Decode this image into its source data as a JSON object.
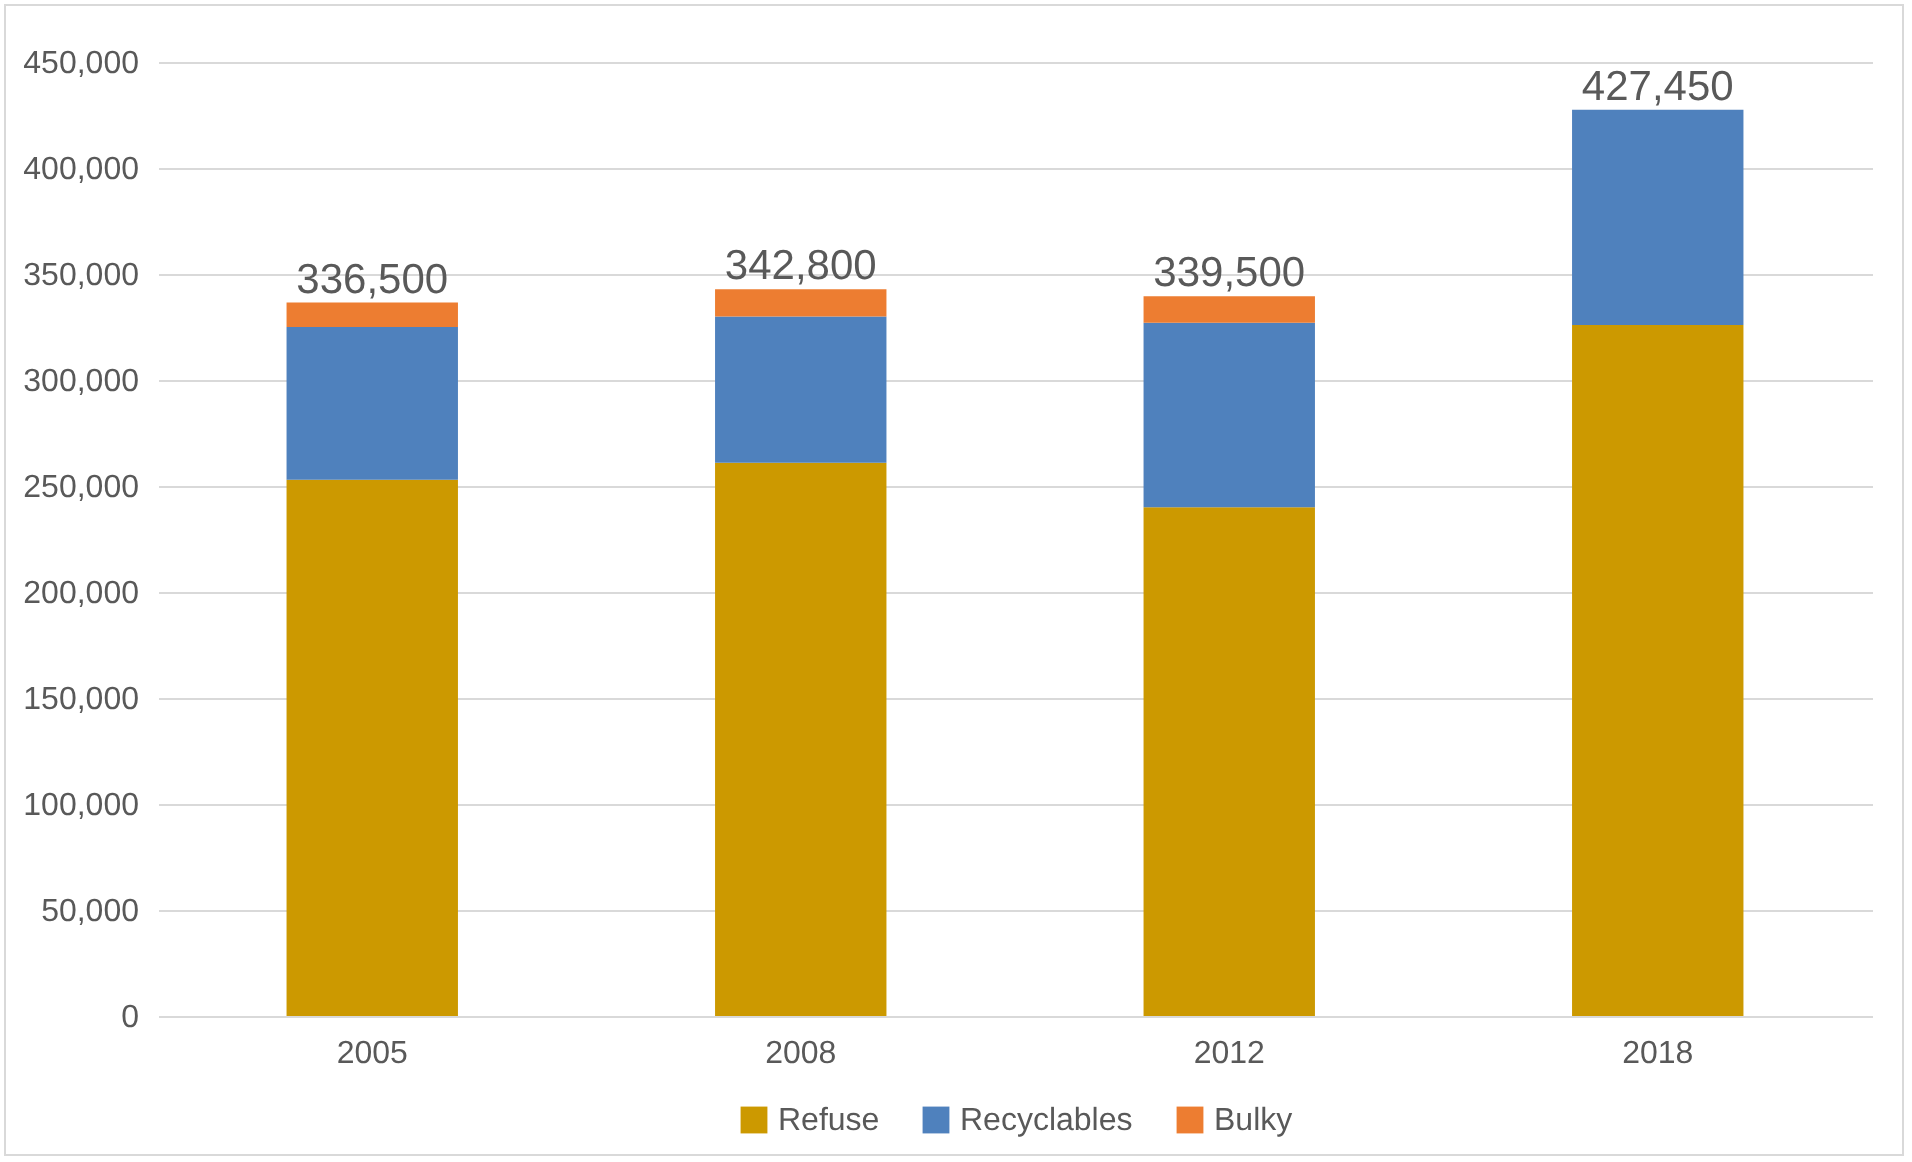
{
  "chart_data": {
    "type": "bar",
    "stacked": true,
    "categories": [
      "2005",
      "2008",
      "2012",
      "2018"
    ],
    "series": [
      {
        "name": "Refuse",
        "color": "#cc9900",
        "values": [
          253000,
          261000,
          240000,
          326000
        ]
      },
      {
        "name": "Recyclables",
        "color": "#4f81bd",
        "values": [
          72000,
          69000,
          87000,
          101450
        ]
      },
      {
        "name": "Bulky",
        "color": "#ed7d31",
        "values": [
          11500,
          12800,
          12500,
          null
        ]
      }
    ],
    "totals": [
      "336,500",
      "342,800",
      "339,500",
      "427,450"
    ],
    "ylim": [
      0,
      450000
    ],
    "yticks": [
      0,
      {
        "value": 50000,
        "label": "50,000"
      },
      {
        "value": 100000,
        "label": "100,000"
      },
      {
        "value": 150000,
        "label": "150,000"
      },
      {
        "value": 200000,
        "label": "200,000"
      },
      {
        "value": 250000,
        "label": "250,000"
      },
      {
        "value": 300000,
        "label": "300,000"
      },
      {
        "value": 350000,
        "label": "350,000"
      },
      {
        "value": 400000,
        "label": "400,000"
      },
      {
        "value": 450000,
        "label": "450,000"
      }
    ],
    "grid": "y",
    "legend": "bottom"
  }
}
